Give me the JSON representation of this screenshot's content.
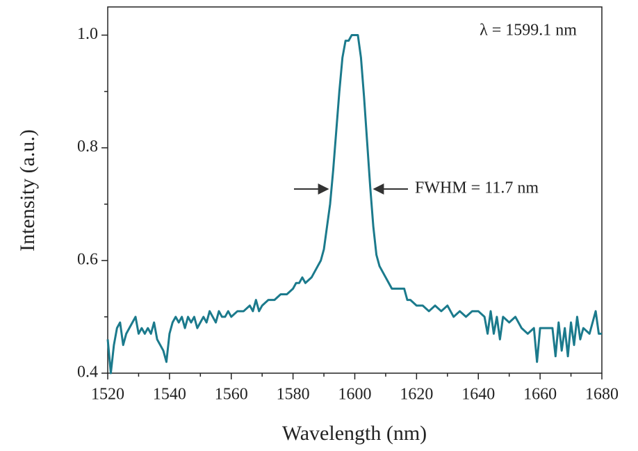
{
  "chart_data": {
    "type": "line",
    "xlabel": "Wavelength (nm)",
    "ylabel": "Intensity (a.u.)",
    "annotations": [
      "λ = 1599.1 nm",
      "FWHM = 11.7 nm"
    ],
    "color": "#1b7a8c",
    "xlim": [
      1520,
      1680
    ],
    "ylim": [
      0.4,
      1.05
    ],
    "xticks": [
      1520,
      1540,
      1560,
      1580,
      1600,
      1620,
      1640,
      1660,
      1680
    ],
    "yticks": [
      0.4,
      0.6,
      0.8,
      {
        "value": 1,
        "label": "1.0"
      }
    ],
    "xminorticks": [
      1530,
      1550,
      1570,
      1590,
      1610,
      1630,
      1650,
      1670
    ],
    "yminorticks": [
      0.5,
      0.7,
      0.9
    ],
    "x": [
      1520,
      1521,
      1522,
      1523,
      1524,
      1525,
      1526,
      1527,
      1528,
      1529,
      1530,
      1531,
      1532,
      1533,
      1534,
      1535,
      1536,
      1537,
      1538,
      1539,
      1540,
      1541,
      1542,
      1543,
      1544,
      1545,
      1546,
      1547,
      1548,
      1549,
      1550,
      1551,
      1552,
      1553,
      1554,
      1555,
      1556,
      1557,
      1558,
      1559,
      1560,
      1562,
      1564,
      1566,
      1567,
      1568,
      1569,
      1570,
      1572,
      1574,
      1576,
      1578,
      1580,
      1581,
      1582,
      1583,
      1584,
      1586,
      1588,
      1589,
      1590,
      1591,
      1592,
      1593,
      1594,
      1595,
      1596,
      1597,
      1598,
      1599,
      1600,
      1601,
      1602,
      1603,
      1604,
      1605,
      1606,
      1607,
      1608,
      1609,
      1610,
      1611,
      1612,
      1614,
      1616,
      1617,
      1618,
      1620,
      1622,
      1624,
      1626,
      1628,
      1630,
      1632,
      1634,
      1636,
      1638,
      1640,
      1642,
      1643,
      1644,
      1645,
      1646,
      1647,
      1648,
      1650,
      1652,
      1654,
      1656,
      1658,
      1659,
      1660,
      1662,
      1664,
      1665,
      1666,
      1667,
      1668,
      1669,
      1670,
      1671,
      1672,
      1673,
      1674,
      1676,
      1678,
      1679,
      1680
    ],
    "values": [
      0.46,
      0.4,
      0.45,
      0.48,
      0.49,
      0.45,
      0.47,
      0.48,
      0.49,
      0.5,
      0.47,
      0.48,
      0.47,
      0.48,
      0.47,
      0.49,
      0.46,
      0.45,
      0.44,
      0.42,
      0.47,
      0.49,
      0.5,
      0.49,
      0.5,
      0.48,
      0.5,
      0.49,
      0.5,
      0.48,
      0.49,
      0.5,
      0.49,
      0.51,
      0.5,
      0.49,
      0.51,
      0.5,
      0.5,
      0.51,
      0.5,
      0.51,
      0.51,
      0.52,
      0.51,
      0.53,
      0.51,
      0.52,
      0.53,
      0.53,
      0.54,
      0.54,
      0.55,
      0.56,
      0.56,
      0.57,
      0.56,
      0.57,
      0.59,
      0.6,
      0.62,
      0.66,
      0.7,
      0.76,
      0.83,
      0.9,
      0.96,
      0.99,
      0.99,
      1.0,
      1.0,
      1.0,
      0.96,
      0.89,
      0.81,
      0.73,
      0.66,
      0.61,
      0.59,
      0.58,
      0.57,
      0.56,
      0.55,
      0.55,
      0.55,
      0.53,
      0.53,
      0.52,
      0.52,
      0.51,
      0.52,
      0.51,
      0.52,
      0.5,
      0.51,
      0.5,
      0.51,
      0.51,
      0.5,
      0.47,
      0.51,
      0.47,
      0.5,
      0.46,
      0.5,
      0.49,
      0.5,
      0.48,
      0.47,
      0.48,
      0.42,
      0.48,
      0.48,
      0.48,
      0.43,
      0.49,
      0.44,
      0.48,
      0.43,
      0.49,
      0.45,
      0.5,
      0.46,
      0.48,
      0.47,
      0.51,
      0.47,
      0.47
    ]
  }
}
